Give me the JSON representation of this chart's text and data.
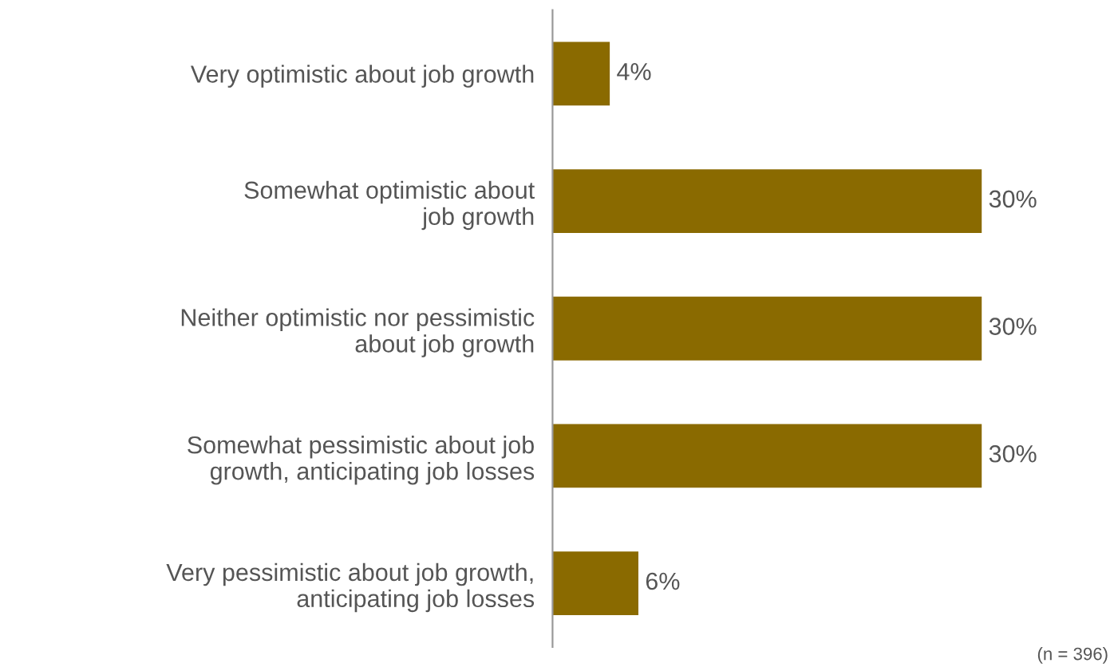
{
  "chart_data": {
    "type": "bar",
    "orientation": "horizontal",
    "categories": [
      "Very optimistic about job growth",
      "Somewhat optimistic about\njob growth",
      "Neither optimistic nor pessimistic\nabout job growth",
      "Somewhat pessimistic about job\ngrowth, anticipating job losses",
      "Very pessimistic about job growth,\nanticipating job losses"
    ],
    "values": [
      4,
      30,
      30,
      30,
      6
    ],
    "value_labels": [
      "4%",
      "30%",
      "30%",
      "30%",
      "6%"
    ],
    "color": "#8a6a00",
    "grid": false,
    "legend": false,
    "annotations": [
      "(n = 396)"
    ]
  }
}
